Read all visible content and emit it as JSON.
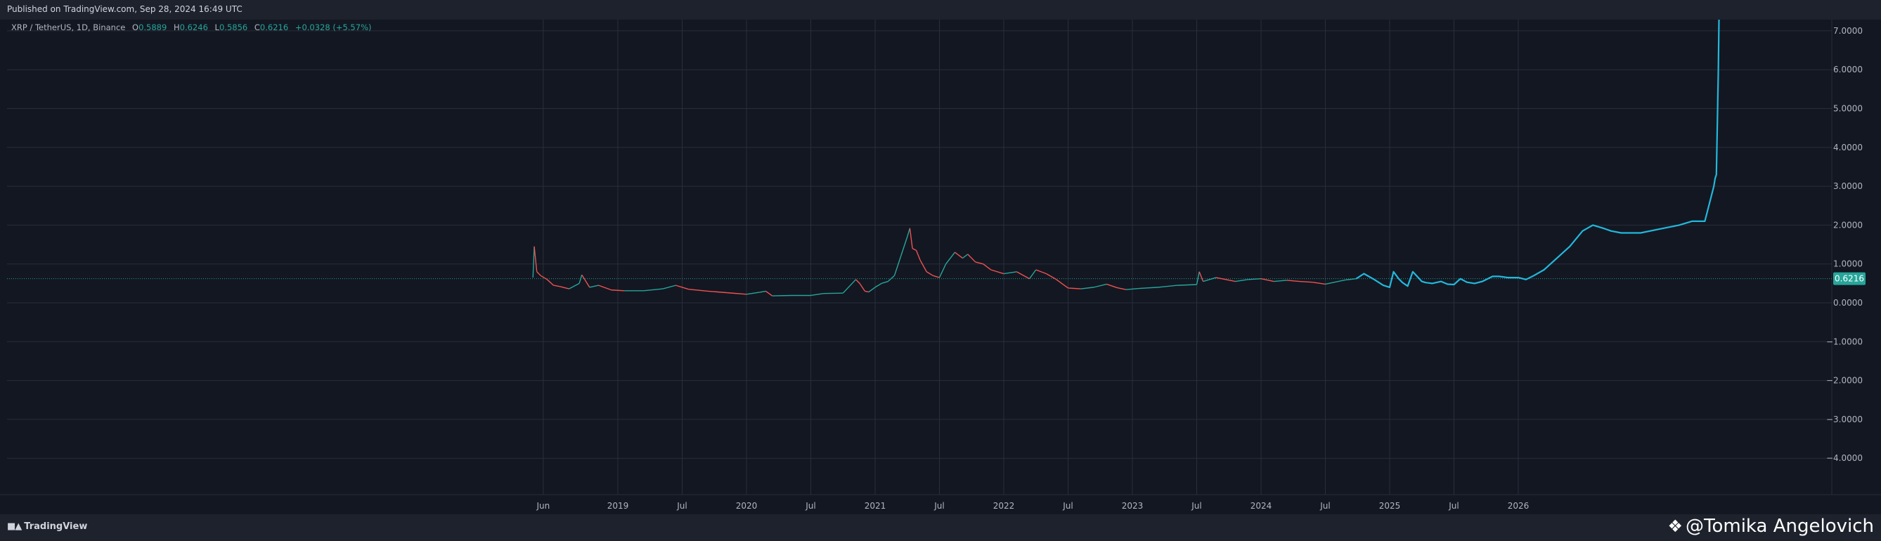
{
  "header": {
    "published": "Published on TradingView.com, Sep 28, 2024 16:49 UTC"
  },
  "legend": {
    "symbol": "XRP / TetherUS, 1D, Binance",
    "open_label": "O",
    "open": "0.5889",
    "high_label": "H",
    "high": "0.6246",
    "low_label": "L",
    "low": "0.5856",
    "close_label": "C",
    "close": "0.6216",
    "change": "+0.0328 (+5.57%)"
  },
  "footer": {
    "brand": "TradingView",
    "brand_icon": "tradingview-logo-icon",
    "watermark": "@Tomika Angelovich",
    "watermark_icon": "binance-diamond-icon"
  },
  "colors": {
    "background": "#131722",
    "grid": "#2a2e39",
    "up": "#26a69a",
    "down": "#ef5350",
    "projection": "#22b8dc",
    "price_badge": "#26a69a"
  },
  "chart_data": {
    "type": "line",
    "title": "XRP / TetherUS, 1D, Binance",
    "xlabel": "",
    "ylabel": "",
    "ylim": [
      -4.5,
      7.2
    ],
    "grid": true,
    "y_ticks": [
      7,
      6,
      5,
      4,
      3,
      2,
      1,
      0,
      -1,
      -2,
      -3,
      -4
    ],
    "y_tick_labels": [
      "7.0000",
      "6.0000",
      "5.0000",
      "4.0000",
      "3.0000",
      "2.0000",
      "1.0000",
      "0.0000",
      "−1.0000",
      "−2.0000",
      "−3.0000",
      "−4.0000"
    ],
    "x_ticks": [
      {
        "t": 2018.42,
        "label": "Jun"
      },
      {
        "t": 2019.0,
        "label": "2019"
      },
      {
        "t": 2019.5,
        "label": "Jul"
      },
      {
        "t": 2020.0,
        "label": "2020"
      },
      {
        "t": 2020.5,
        "label": "Jul"
      },
      {
        "t": 2021.0,
        "label": "2021"
      },
      {
        "t": 2021.5,
        "label": "Jul"
      },
      {
        "t": 2022.0,
        "label": "2022"
      },
      {
        "t": 2022.5,
        "label": "Jul"
      },
      {
        "t": 2023.0,
        "label": "2023"
      },
      {
        "t": 2023.5,
        "label": "Jul"
      },
      {
        "t": 2024.0,
        "label": "2024"
      },
      {
        "t": 2024.5,
        "label": "Jul"
      },
      {
        "t": 2025.0,
        "label": "2025"
      },
      {
        "t": 2025.5,
        "label": "Jul"
      },
      {
        "t": 2026.0,
        "label": "2026"
      }
    ],
    "current_price": 0.6216,
    "current_price_label": "0.6216",
    "series": [
      {
        "style": "historical",
        "x": [
          2018.34,
          2018.35,
          2018.37,
          2018.4,
          2018.45,
          2018.5,
          2018.55,
          2018.62,
          2018.7,
          2018.72,
          2018.78,
          2018.85,
          2018.95,
          2019.05,
          2019.2,
          2019.35,
          2019.45,
          2019.55,
          2019.7,
          2019.85,
          2020.0,
          2020.1,
          2020.15,
          2020.2,
          2020.35,
          2020.5,
          2020.6,
          2020.75,
          2020.85,
          2020.88,
          2020.92,
          2020.95,
          2021.0,
          2021.05,
          2021.1,
          2021.15,
          2021.2,
          2021.25,
          2021.27,
          2021.29,
          2021.32,
          2021.35,
          2021.4,
          2021.45,
          2021.5,
          2021.55,
          2021.62,
          2021.68,
          2021.72,
          2021.78,
          2021.84,
          2021.9,
          2022.0,
          2022.1,
          2022.2,
          2022.25,
          2022.33,
          2022.4,
          2022.5,
          2022.6,
          2022.7,
          2022.8,
          2022.88,
          2022.95,
          2023.05,
          2023.2,
          2023.35,
          2023.5,
          2023.52,
          2023.55,
          2023.65,
          2023.8,
          2023.9,
          2024.0,
          2024.1,
          2024.2,
          2024.3,
          2024.4,
          2024.5,
          2024.6,
          2024.66,
          2024.74
        ],
        "y": [
          0.65,
          1.45,
          0.8,
          0.7,
          0.6,
          0.45,
          0.42,
          0.36,
          0.5,
          0.72,
          0.4,
          0.45,
          0.33,
          0.31,
          0.31,
          0.36,
          0.45,
          0.35,
          0.3,
          0.26,
          0.22,
          0.27,
          0.3,
          0.18,
          0.19,
          0.19,
          0.24,
          0.25,
          0.6,
          0.5,
          0.3,
          0.28,
          0.4,
          0.5,
          0.55,
          0.7,
          1.2,
          1.7,
          1.92,
          1.4,
          1.35,
          1.1,
          0.8,
          0.7,
          0.65,
          1.0,
          1.3,
          1.15,
          1.25,
          1.05,
          1.0,
          0.85,
          0.75,
          0.8,
          0.62,
          0.85,
          0.75,
          0.62,
          0.38,
          0.36,
          0.4,
          0.48,
          0.39,
          0.34,
          0.37,
          0.4,
          0.45,
          0.47,
          0.8,
          0.55,
          0.65,
          0.55,
          0.6,
          0.62,
          0.55,
          0.58,
          0.55,
          0.53,
          0.48,
          0.55,
          0.59,
          0.62
        ]
      },
      {
        "style": "projection",
        "x": [
          2024.74,
          2024.8,
          2024.88,
          2024.95,
          2025.0,
          2025.03,
          2025.07,
          2025.1,
          2025.14,
          2025.18,
          2025.25,
          2025.28,
          2025.33,
          2025.4,
          2025.45,
          2025.5,
          2025.55,
          2025.6,
          2025.66,
          2025.72,
          2025.8,
          2025.85,
          2025.92,
          2026.0,
          2026.06,
          2026.12,
          2026.2,
          2026.3,
          2026.4,
          2026.5,
          2026.58,
          2026.66,
          2026.72,
          2026.8,
          2026.95,
          2027.1,
          2027.25,
          2027.35,
          2027.45,
          2027.52,
          2027.53,
          2027.54,
          2027.555,
          2027.56
        ],
        "y": [
          0.62,
          0.75,
          0.6,
          0.45,
          0.4,
          0.8,
          0.62,
          0.52,
          0.43,
          0.8,
          0.55,
          0.52,
          0.5,
          0.55,
          0.48,
          0.47,
          0.62,
          0.53,
          0.5,
          0.55,
          0.68,
          0.68,
          0.65,
          0.65,
          0.6,
          0.7,
          0.85,
          1.15,
          1.45,
          1.85,
          2.0,
          1.92,
          1.85,
          1.8,
          1.8,
          1.9,
          2.0,
          2.1,
          2.1,
          3.0,
          3.2,
          3.3,
          6.0,
          8.0
        ]
      }
    ]
  }
}
